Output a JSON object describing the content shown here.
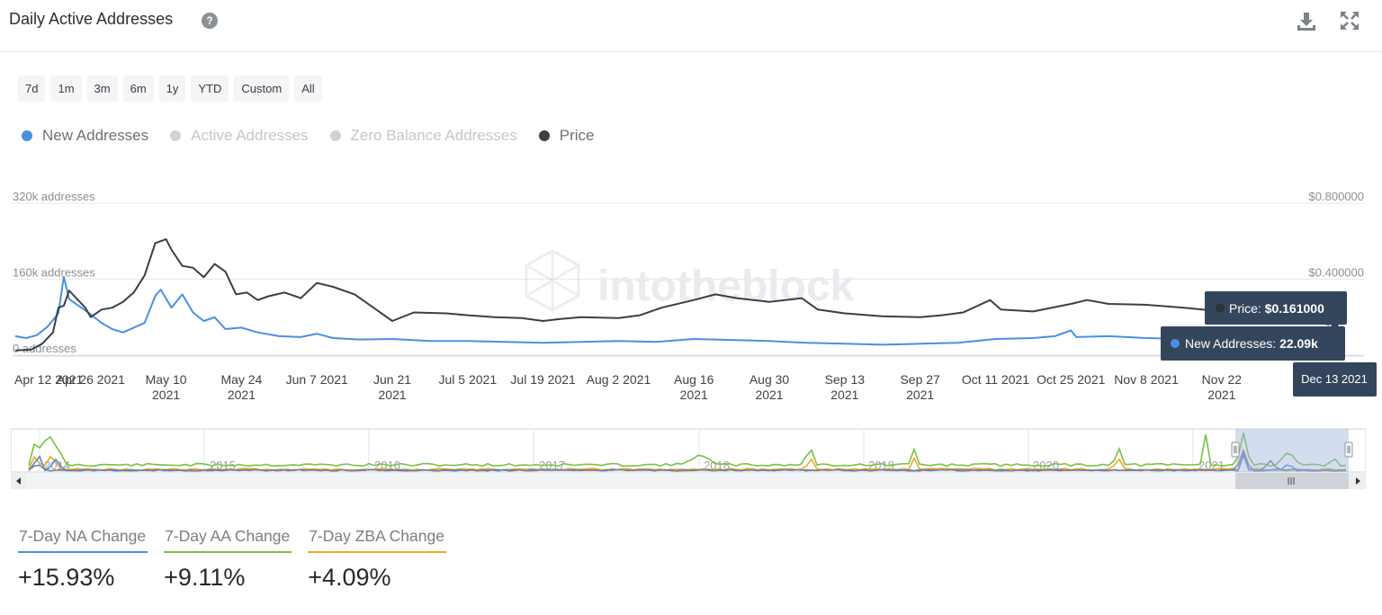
{
  "header": {
    "title": "Daily Active Addresses",
    "help_icon": "question-circle-icon",
    "help_glyph": "?",
    "download_icon": "download-icon",
    "fullscreen_icon": "expand-icon"
  },
  "range_buttons": [
    "7d",
    "1m",
    "3m",
    "6m",
    "1y",
    "YTD",
    "Custom",
    "All"
  ],
  "legend": [
    {
      "label": "New Addresses",
      "color": "#4a90e2",
      "active": true
    },
    {
      "label": "Active Addresses",
      "color": "#cfd2d6",
      "active": false
    },
    {
      "label": "Zero Balance Addresses",
      "color": "#cfd2d6",
      "active": false
    },
    {
      "label": "Price",
      "color": "#3b3f45",
      "active": true
    }
  ],
  "watermark": "intotheblock",
  "tooltip": {
    "price_label": "Price:",
    "price_value": "$0.161000",
    "na_label": "New Addresses:",
    "na_value": "22.09k",
    "date": "Dec 13 2021"
  },
  "navigator": {
    "years": [
      "2014",
      "2015",
      "2016",
      "2017",
      "2018",
      "2019",
      "2020",
      "2021"
    ]
  },
  "stats": [
    {
      "label": "7-Day NA Change",
      "value": "+15.93%",
      "color": "#4a90e2"
    },
    {
      "label": "7-Day AA Change",
      "value": "+9.11%",
      "color": "#7ac143"
    },
    {
      "label": "7-Day ZBA Change",
      "value": "+4.09%",
      "color": "#f5a623"
    }
  ],
  "chart_data": {
    "type": "line",
    "left_axis": {
      "ticks": [
        "0 addresses",
        "160k addresses",
        "320k addresses"
      ],
      "values": [
        0,
        160000,
        320000
      ]
    },
    "right_axis": {
      "ticks": [
        "$0.400000",
        "$0.800000"
      ],
      "values": [
        0.4,
        0.8
      ]
    },
    "x_ticks": [
      {
        "date": "2021-04-12",
        "label": [
          "Apr 12 2021"
        ]
      },
      {
        "date": "2021-04-26",
        "label": [
          "Apr 26 2021"
        ]
      },
      {
        "date": "2021-05-10",
        "label": [
          "May 10",
          "2021"
        ]
      },
      {
        "date": "2021-05-24",
        "label": [
          "May 24",
          "2021"
        ]
      },
      {
        "date": "2021-06-07",
        "label": [
          "Jun 7 2021"
        ]
      },
      {
        "date": "2021-06-21",
        "label": [
          "Jun 21",
          "2021"
        ]
      },
      {
        "date": "2021-07-05",
        "label": [
          "Jul 5 2021"
        ]
      },
      {
        "date": "2021-07-19",
        "label": [
          "Jul 19 2021"
        ]
      },
      {
        "date": "2021-08-02",
        "label": [
          "Aug 2 2021"
        ]
      },
      {
        "date": "2021-08-16",
        "label": [
          "Aug 16",
          "2021"
        ]
      },
      {
        "date": "2021-08-30",
        "label": [
          "Aug 30",
          "2021"
        ]
      },
      {
        "date": "2021-09-13",
        "label": [
          "Sep 13",
          "2021"
        ]
      },
      {
        "date": "2021-09-27",
        "label": [
          "Sep 27",
          "2021"
        ]
      },
      {
        "date": "2021-10-11",
        "label": [
          "Oct 11 2021"
        ]
      },
      {
        "date": "2021-10-25",
        "label": [
          "Oct 25 2021"
        ]
      },
      {
        "date": "2021-11-08",
        "label": [
          "Nov 8 2021"
        ]
      },
      {
        "date": "2021-11-22",
        "label": [
          "Nov 22",
          "2021"
        ]
      }
    ],
    "series": [
      {
        "name": "New Addresses",
        "axis": "left",
        "color": "#4a90e2",
        "points": [
          [
            "2021-04-12",
            40000
          ],
          [
            "2021-04-14",
            36000
          ],
          [
            "2021-04-16",
            42000
          ],
          [
            "2021-04-18",
            60000
          ],
          [
            "2021-04-20",
            88000
          ],
          [
            "2021-04-21",
            165000
          ],
          [
            "2021-04-22",
            118000
          ],
          [
            "2021-04-24",
            102000
          ],
          [
            "2021-04-26",
            86000
          ],
          [
            "2021-04-28",
            68000
          ],
          [
            "2021-04-30",
            55000
          ],
          [
            "2021-05-02",
            48000
          ],
          [
            "2021-05-04",
            58000
          ],
          [
            "2021-05-06",
            68000
          ],
          [
            "2021-05-08",
            125000
          ],
          [
            "2021-05-09",
            138000
          ],
          [
            "2021-05-11",
            100000
          ],
          [
            "2021-05-13",
            128000
          ],
          [
            "2021-05-15",
            90000
          ],
          [
            "2021-05-17",
            72000
          ],
          [
            "2021-05-19",
            80000
          ],
          [
            "2021-05-21",
            55000
          ],
          [
            "2021-05-24",
            58000
          ],
          [
            "2021-05-27",
            48000
          ],
          [
            "2021-05-31",
            40000
          ],
          [
            "2021-06-04",
            38000
          ],
          [
            "2021-06-07",
            45000
          ],
          [
            "2021-06-10",
            36000
          ],
          [
            "2021-06-15",
            33000
          ],
          [
            "2021-06-21",
            34000
          ],
          [
            "2021-06-28",
            30000
          ],
          [
            "2021-07-05",
            30000
          ],
          [
            "2021-07-12",
            28000
          ],
          [
            "2021-07-19",
            26000
          ],
          [
            "2021-07-26",
            28000
          ],
          [
            "2021-08-02",
            30000
          ],
          [
            "2021-08-09",
            28000
          ],
          [
            "2021-08-16",
            34000
          ],
          [
            "2021-08-23",
            32000
          ],
          [
            "2021-08-30",
            30000
          ],
          [
            "2021-09-06",
            26000
          ],
          [
            "2021-09-13",
            24000
          ],
          [
            "2021-09-20",
            22000
          ],
          [
            "2021-09-27",
            24000
          ],
          [
            "2021-10-04",
            26000
          ],
          [
            "2021-10-11",
            34000
          ],
          [
            "2021-10-18",
            36000
          ],
          [
            "2021-10-22",
            40000
          ],
          [
            "2021-10-25",
            52000
          ],
          [
            "2021-10-26",
            38000
          ],
          [
            "2021-11-01",
            40000
          ],
          [
            "2021-11-08",
            36000
          ],
          [
            "2021-11-15",
            34000
          ],
          [
            "2021-11-22",
            30000
          ],
          [
            "2021-11-29",
            28000
          ],
          [
            "2021-12-06",
            20000
          ],
          [
            "2021-12-13",
            22090
          ]
        ]
      },
      {
        "name": "Price",
        "axis": "right",
        "color": "#3b3f45",
        "points": [
          [
            "2021-04-12",
            0.025
          ],
          [
            "2021-04-15",
            0.03
          ],
          [
            "2021-04-17",
            0.06
          ],
          [
            "2021-04-19",
            0.12
          ],
          [
            "2021-04-20",
            0.25
          ],
          [
            "2021-04-21",
            0.26
          ],
          [
            "2021-04-22",
            0.34
          ],
          [
            "2021-04-23",
            0.31
          ],
          [
            "2021-04-25",
            0.25
          ],
          [
            "2021-04-26",
            0.2
          ],
          [
            "2021-04-28",
            0.24
          ],
          [
            "2021-04-30",
            0.25
          ],
          [
            "2021-05-02",
            0.28
          ],
          [
            "2021-05-04",
            0.33
          ],
          [
            "2021-05-06",
            0.42
          ],
          [
            "2021-05-08",
            0.59
          ],
          [
            "2021-05-10",
            0.61
          ],
          [
            "2021-05-11",
            0.555
          ],
          [
            "2021-05-13",
            0.47
          ],
          [
            "2021-05-15",
            0.46
          ],
          [
            "2021-05-17",
            0.41
          ],
          [
            "2021-05-19",
            0.48
          ],
          [
            "2021-05-21",
            0.44
          ],
          [
            "2021-05-23",
            0.32
          ],
          [
            "2021-05-25",
            0.33
          ],
          [
            "2021-05-27",
            0.29
          ],
          [
            "2021-05-29",
            0.31
          ],
          [
            "2021-06-01",
            0.33
          ],
          [
            "2021-06-04",
            0.3
          ],
          [
            "2021-06-07",
            0.38
          ],
          [
            "2021-06-10",
            0.36
          ],
          [
            "2021-06-14",
            0.32
          ],
          [
            "2021-06-17",
            0.26
          ],
          [
            "2021-06-21",
            0.18
          ],
          [
            "2021-06-25",
            0.225
          ],
          [
            "2021-07-01",
            0.22
          ],
          [
            "2021-07-05",
            0.21
          ],
          [
            "2021-07-10",
            0.2
          ],
          [
            "2021-07-15",
            0.195
          ],
          [
            "2021-07-19",
            0.18
          ],
          [
            "2021-07-22",
            0.19
          ],
          [
            "2021-07-26",
            0.2
          ],
          [
            "2021-08-02",
            0.195
          ],
          [
            "2021-08-06",
            0.21
          ],
          [
            "2021-08-10",
            0.25
          ],
          [
            "2021-08-16",
            0.29
          ],
          [
            "2021-08-20",
            0.32
          ],
          [
            "2021-08-24",
            0.3
          ],
          [
            "2021-08-30",
            0.28
          ],
          [
            "2021-09-05",
            0.3
          ],
          [
            "2021-09-08",
            0.24
          ],
          [
            "2021-09-13",
            0.22
          ],
          [
            "2021-09-20",
            0.205
          ],
          [
            "2021-09-27",
            0.2
          ],
          [
            "2021-10-01",
            0.21
          ],
          [
            "2021-10-05",
            0.225
          ],
          [
            "2021-10-10",
            0.29
          ],
          [
            "2021-10-12",
            0.24
          ],
          [
            "2021-10-18",
            0.23
          ],
          [
            "2021-10-25",
            0.27
          ],
          [
            "2021-10-28",
            0.29
          ],
          [
            "2021-11-01",
            0.27
          ],
          [
            "2021-11-08",
            0.265
          ],
          [
            "2021-11-15",
            0.25
          ],
          [
            "2021-11-22",
            0.23
          ],
          [
            "2021-11-29",
            0.215
          ],
          [
            "2021-12-06",
            0.175
          ],
          [
            "2021-12-13",
            0.161
          ]
        ]
      }
    ],
    "navigator_series": [
      {
        "name": "Active Addresses",
        "color": "#7ac143"
      },
      {
        "name": "Zero Balance Addresses",
        "color": "#f5a623"
      },
      {
        "name": "New Addresses",
        "color": "#4a90e2"
      },
      {
        "name": "Price",
        "color": "#7d8188"
      }
    ]
  }
}
